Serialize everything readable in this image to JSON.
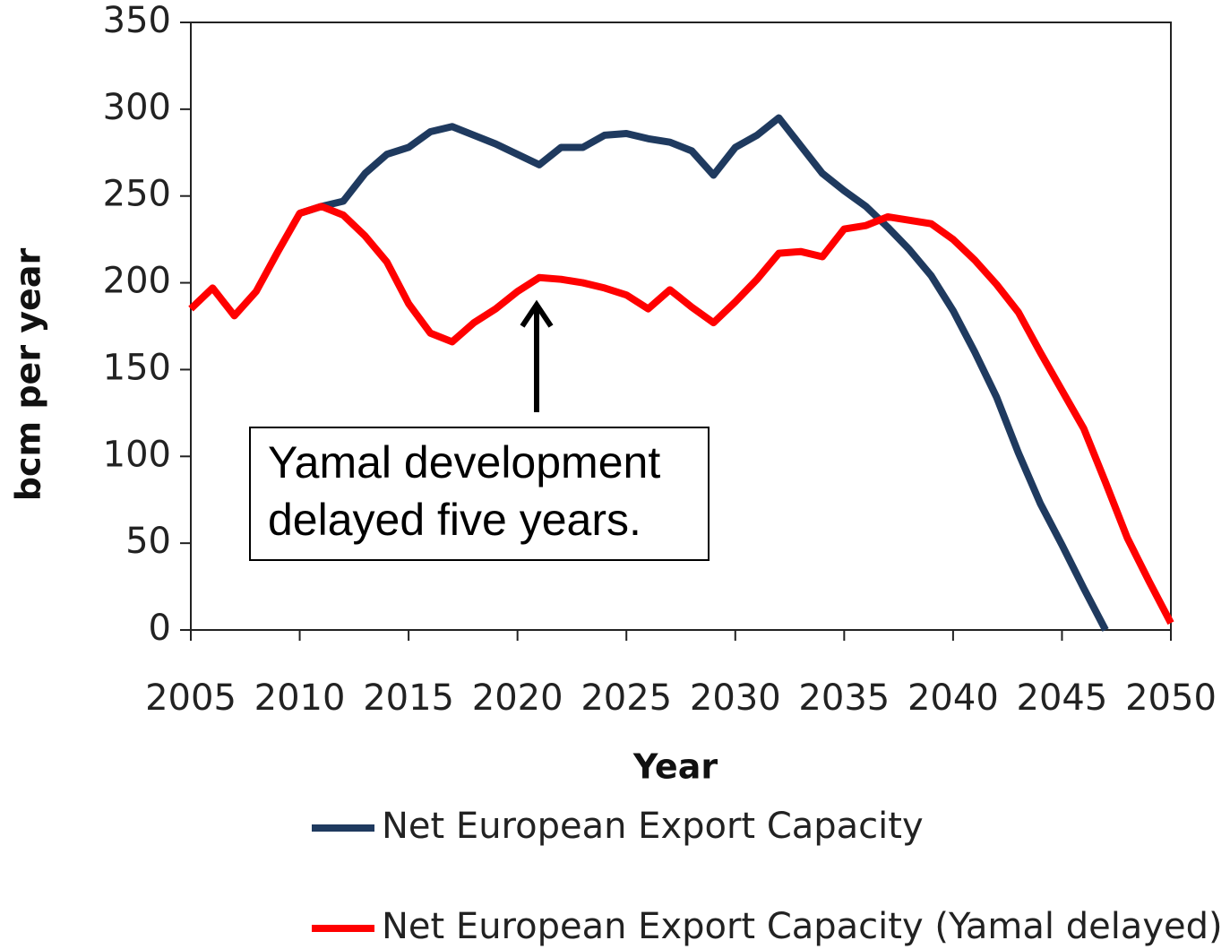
{
  "chart_data": {
    "type": "line",
    "xlabel": "Year",
    "ylabel": "bcm per year",
    "xlim": [
      2005,
      2050
    ],
    "xticks": [
      2005,
      2010,
      2015,
      2020,
      2025,
      2030,
      2035,
      2040,
      2045,
      2050
    ],
    "ylim": [
      0,
      350
    ],
    "yticks": [
      0,
      50,
      100,
      150,
      200,
      250,
      300,
      350
    ],
    "grid": false,
    "legend": "bottom",
    "annotation": [
      "Yamal development",
      "delayed five years."
    ],
    "series": [
      {
        "name": "Net European Export Capacity",
        "color": "#1f3a5f",
        "x": [
          2010,
          2011,
          2012,
          2013,
          2014,
          2015,
          2016,
          2017,
          2018,
          2019,
          2020,
          2021,
          2022,
          2023,
          2024,
          2025,
          2026,
          2027,
          2028,
          2029,
          2030,
          2031,
          2032,
          2033,
          2034,
          2035,
          2036,
          2037,
          2038,
          2039,
          2040,
          2041,
          2042,
          2043,
          2044,
          2045,
          2046,
          2047
        ],
        "values": [
          240,
          244,
          247,
          263,
          274,
          278,
          287,
          290,
          285,
          280,
          274,
          268,
          278,
          278,
          285,
          286,
          283,
          281,
          276,
          262,
          278,
          285,
          295,
          279,
          263,
          253,
          244,
          232,
          219,
          204,
          184,
          160,
          134,
          102,
          73,
          49,
          24,
          0
        ]
      },
      {
        "name": "Net European Export Capacity (Yamal delayed)",
        "color": "#ff0000",
        "x": [
          2005,
          2006,
          2007,
          2008,
          2009,
          2010,
          2011,
          2012,
          2013,
          2014,
          2015,
          2016,
          2017,
          2018,
          2019,
          2020,
          2021,
          2022,
          2023,
          2024,
          2025,
          2026,
          2027,
          2028,
          2029,
          2030,
          2031,
          2032,
          2033,
          2034,
          2035,
          2036,
          2037,
          2038,
          2039,
          2040,
          2041,
          2042,
          2043,
          2044,
          2045,
          2046,
          2047,
          2048,
          2049,
          2050
        ],
        "values": [
          185,
          197,
          181,
          195,
          218,
          240,
          244,
          239,
          227,
          212,
          188,
          171,
          166,
          177,
          185,
          195,
          203,
          202,
          200,
          197,
          193,
          185,
          196,
          186,
          177,
          189,
          202,
          217,
          218,
          215,
          231,
          233,
          238,
          236,
          234,
          225,
          213,
          199,
          183,
          160,
          138,
          116,
          85,
          53,
          28,
          4
        ]
      }
    ]
  }
}
